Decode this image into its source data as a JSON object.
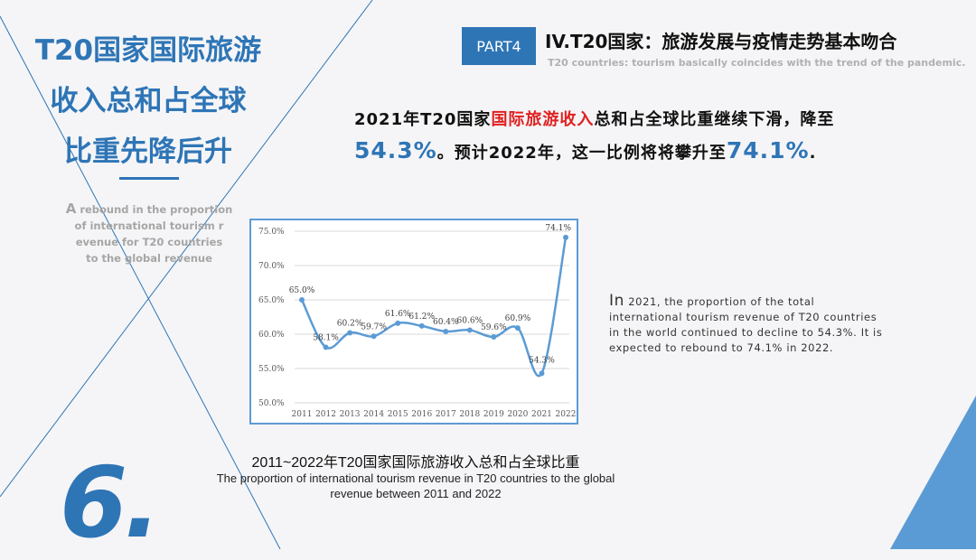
{
  "left_panel": {
    "title_lines": [
      "T20国家国际旅游",
      "收入总和占全球",
      "比重先降后升"
    ],
    "subtitle_first_letter": "A",
    "subtitle_rest_line1": " rebound in the proportion",
    "subtitle_line2": "of international tourism r",
    "subtitle_line3": "evenue for T20 countries",
    "subtitle_line4": "to the global revenue",
    "section_number": "6."
  },
  "header": {
    "part_label": "PART4",
    "title": "IV.T20国家：旅游发展与疫情走势基本吻合",
    "subtitle": "T20 countries: tourism basically coincides with the trend of the pandemic."
  },
  "headline": {
    "part1": "2021年T20国家",
    "highlight": "国际旅游收入",
    "part2": "总和占全球比重继续下滑，降至",
    "value1": "54.3%",
    "part3": "。预计2022年，这一比例将将攀升至",
    "value2": "74.1%",
    "part4": "."
  },
  "description": {
    "lead": "In",
    "text": " 2021, the proportion of the total international tourism revenue of T20 countries in the world continued to decline to 54.3%. It is expected to rebound to 74.1% in 2022."
  },
  "caption": {
    "cn": "2011~2022年T20国家国际旅游收入总和占全球比重",
    "en": "The proportion of international tourism revenue in T20 countries to the global revenue between 2011 and 2022"
  },
  "colors": {
    "accent": "#2e75b6",
    "line": "#5b9bd5",
    "highlight": "#e02020"
  },
  "chart_data": {
    "type": "line",
    "title": "",
    "xlabel": "",
    "ylabel": "",
    "x": [
      "2011",
      "2012",
      "2013",
      "2014",
      "2015",
      "2016",
      "2017",
      "2018",
      "2019",
      "2020",
      "2021",
      "2022"
    ],
    "values": [
      65.0,
      58.1,
      60.2,
      59.7,
      61.6,
      61.2,
      60.4,
      60.6,
      59.6,
      60.9,
      54.3,
      74.1
    ],
    "data_labels": [
      "65.0%",
      "58.1%",
      "60.2%",
      "59.7%",
      "61.6%",
      "61.2%",
      "60.4%",
      "60.6%",
      "59.6%",
      "60.9%",
      "54.3%",
      "74.1%"
    ],
    "y_ticks": [
      50,
      55,
      60,
      65,
      70,
      75
    ],
    "y_tick_labels": [
      "50.0%",
      "55.0%",
      "60.0%",
      "65.0%",
      "70.0%",
      "75.0%"
    ],
    "ylim": [
      50,
      75
    ],
    "grid": true,
    "smooth": true
  }
}
